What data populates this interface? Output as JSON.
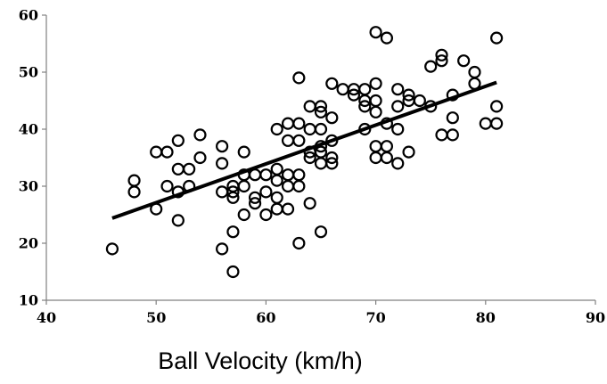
{
  "chart_data": {
    "type": "scatter",
    "title": "",
    "xlabel": "Ball Velocity (km/h)",
    "ylabel": "",
    "xlim": [
      40,
      90
    ],
    "ylim": [
      10,
      60
    ],
    "x_ticks": [
      40,
      50,
      60,
      70,
      80,
      90
    ],
    "y_ticks": [
      10,
      20,
      30,
      40,
      50,
      60
    ],
    "grid": false,
    "legend": "none",
    "marker": "hollow-circle",
    "colors": {
      "marker_stroke": "#000000",
      "marker_fill": "#ffffff",
      "trend_line": "#000000",
      "axis": "#808080"
    },
    "series": [
      {
        "points": [
          [
            46,
            19
          ],
          [
            48,
            31
          ],
          [
            48,
            29
          ],
          [
            50,
            36
          ],
          [
            50,
            26
          ],
          [
            51,
            36
          ],
          [
            51,
            30
          ],
          [
            52,
            38
          ],
          [
            52,
            33
          ],
          [
            52,
            29
          ],
          [
            52,
            24
          ],
          [
            53,
            33
          ],
          [
            53,
            30
          ],
          [
            54,
            39
          ],
          [
            54,
            35
          ],
          [
            56,
            37
          ],
          [
            56,
            34
          ],
          [
            56,
            29
          ],
          [
            56,
            19
          ],
          [
            57,
            30
          ],
          [
            57,
            29
          ],
          [
            57,
            28
          ],
          [
            57,
            22
          ],
          [
            57,
            15
          ],
          [
            58,
            36
          ],
          [
            58,
            32
          ],
          [
            58,
            30
          ],
          [
            58,
            25
          ],
          [
            59,
            32
          ],
          [
            59,
            28
          ],
          [
            59,
            27
          ],
          [
            60,
            32
          ],
          [
            60,
            29
          ],
          [
            60,
            25
          ],
          [
            61,
            40
          ],
          [
            61,
            33
          ],
          [
            61,
            31
          ],
          [
            61,
            28
          ],
          [
            61,
            26
          ],
          [
            62,
            41
          ],
          [
            62,
            38
          ],
          [
            62,
            32
          ],
          [
            62,
            30
          ],
          [
            62,
            26
          ],
          [
            63,
            49
          ],
          [
            63,
            41
          ],
          [
            63,
            38
          ],
          [
            63,
            32
          ],
          [
            63,
            30
          ],
          [
            63,
            20
          ],
          [
            64,
            44
          ],
          [
            64,
            40
          ],
          [
            64,
            36
          ],
          [
            64,
            35
          ],
          [
            64,
            27
          ],
          [
            65,
            44
          ],
          [
            65,
            43
          ],
          [
            65,
            40
          ],
          [
            65,
            37
          ],
          [
            65,
            36
          ],
          [
            65,
            34
          ],
          [
            65,
            22
          ],
          [
            66,
            48
          ],
          [
            66,
            42
          ],
          [
            66,
            38
          ],
          [
            66,
            35
          ],
          [
            66,
            34
          ],
          [
            67,
            47
          ],
          [
            68,
            47
          ],
          [
            68,
            46
          ],
          [
            69,
            47
          ],
          [
            69,
            45
          ],
          [
            69,
            44
          ],
          [
            69,
            40
          ],
          [
            70,
            57
          ],
          [
            70,
            48
          ],
          [
            70,
            45
          ],
          [
            70,
            43
          ],
          [
            70,
            37
          ],
          [
            70,
            35
          ],
          [
            71,
            56
          ],
          [
            71,
            41
          ],
          [
            71,
            37
          ],
          [
            71,
            35
          ],
          [
            72,
            47
          ],
          [
            72,
            44
          ],
          [
            72,
            40
          ],
          [
            72,
            34
          ],
          [
            73,
            46
          ],
          [
            73,
            45
          ],
          [
            73,
            36
          ],
          [
            74,
            45
          ],
          [
            75,
            51
          ],
          [
            75,
            44
          ],
          [
            76,
            53
          ],
          [
            76,
            52
          ],
          [
            76,
            39
          ],
          [
            77,
            46
          ],
          [
            77,
            42
          ],
          [
            77,
            39
          ],
          [
            78,
            52
          ],
          [
            79,
            50
          ],
          [
            79,
            48
          ],
          [
            80,
            41
          ],
          [
            81,
            56
          ],
          [
            81,
            44
          ],
          [
            81,
            41
          ]
        ]
      }
    ],
    "trend_line": {
      "x": [
        46,
        81
      ],
      "y": [
        24.4,
        48.2
      ]
    }
  }
}
